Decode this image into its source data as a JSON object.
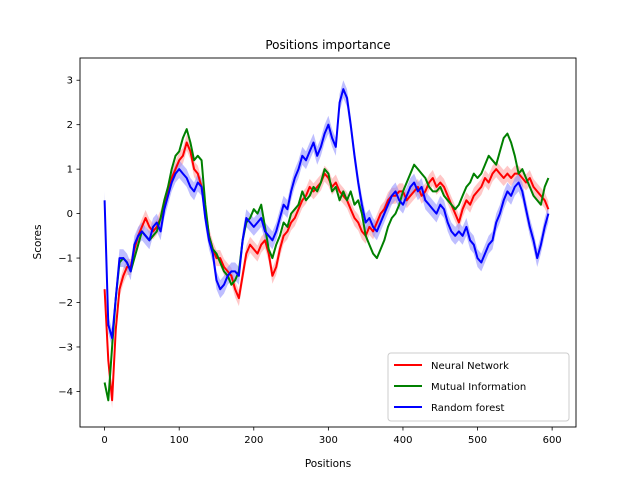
{
  "chart_data": {
    "type": "line",
    "title": "Positions importance",
    "xlabel": "Positions",
    "ylabel": "Scores",
    "xlim": [
      -33,
      632
    ],
    "ylim": [
      -4.8,
      3.5
    ],
    "xticks": [
      0,
      100,
      200,
      300,
      400,
      500,
      600
    ],
    "yticks": [
      -4,
      -3,
      -2,
      -1,
      0,
      1,
      2,
      3
    ],
    "grid": false,
    "legend_position": "lower-right",
    "x": [
      0,
      5,
      10,
      15,
      20,
      25,
      30,
      35,
      40,
      45,
      50,
      55,
      60,
      65,
      70,
      75,
      80,
      85,
      90,
      95,
      100,
      105,
      110,
      115,
      120,
      125,
      130,
      135,
      140,
      145,
      150,
      155,
      160,
      165,
      170,
      175,
      180,
      185,
      190,
      195,
      200,
      205,
      210,
      215,
      220,
      225,
      230,
      235,
      240,
      245,
      250,
      255,
      260,
      265,
      270,
      275,
      280,
      285,
      290,
      295,
      300,
      305,
      310,
      315,
      320,
      325,
      330,
      335,
      340,
      345,
      350,
      355,
      360,
      365,
      370,
      375,
      380,
      385,
      390,
      395,
      400,
      405,
      410,
      415,
      420,
      425,
      430,
      435,
      440,
      445,
      450,
      455,
      460,
      465,
      470,
      475,
      480,
      485,
      490,
      495,
      500,
      505,
      510,
      515,
      520,
      525,
      530,
      535,
      540,
      545,
      550,
      555,
      560,
      565,
      570,
      575,
      580,
      585,
      590,
      595
    ],
    "series": [
      {
        "name": "Neural Network",
        "color": "#ff0000",
        "band_color": "#ff9999",
        "band": 0.18,
        "values": [
          -1.7,
          -3.3,
          -4.2,
          -2.6,
          -1.7,
          -1.4,
          -1.2,
          -1.2,
          -0.8,
          -0.5,
          -0.3,
          -0.1,
          -0.3,
          -0.4,
          -0.3,
          -0.1,
          0.2,
          0.5,
          0.8,
          1.0,
          1.2,
          1.3,
          1.6,
          1.4,
          1.0,
          0.9,
          0.6,
          0.1,
          -0.5,
          -0.8,
          -1.0,
          -1.0,
          -1.2,
          -1.3,
          -1.4,
          -1.7,
          -1.9,
          -1.4,
          -0.9,
          -0.7,
          -0.8,
          -0.9,
          -0.7,
          -0.6,
          -0.9,
          -1.4,
          -1.2,
          -0.8,
          -0.5,
          -0.4,
          -0.2,
          -0.1,
          0.1,
          0.3,
          0.4,
          0.6,
          0.5,
          0.6,
          0.7,
          0.9,
          0.8,
          0.6,
          0.7,
          0.5,
          0.4,
          0.3,
          0.1,
          -0.1,
          -0.2,
          -0.4,
          -0.5,
          -0.3,
          -0.4,
          -0.2,
          0.0,
          0.1,
          0.3,
          0.4,
          0.4,
          0.5,
          0.5,
          0.3,
          0.4,
          0.5,
          0.6,
          0.4,
          0.5,
          0.7,
          0.8,
          0.6,
          0.7,
          0.6,
          0.4,
          0.2,
          0.0,
          -0.2,
          0.1,
          0.3,
          0.2,
          0.4,
          0.5,
          0.6,
          0.8,
          0.7,
          0.9,
          1.0,
          0.9,
          0.8,
          0.9,
          0.8,
          0.9,
          0.9,
          0.8,
          0.7,
          0.8,
          0.6,
          0.5,
          0.4,
          0.3,
          0.1
        ]
      },
      {
        "name": "Mutual Information",
        "color": "#008000",
        "band_color": "#88cc88",
        "band": 0.0,
        "values": [
          -3.8,
          -4.2,
          -3.0,
          -1.9,
          -1.1,
          -1.0,
          -1.1,
          -1.3,
          -1.0,
          -0.7,
          -0.4,
          -0.5,
          -0.6,
          -0.5,
          -0.4,
          -0.1,
          0.3,
          0.6,
          1.0,
          1.3,
          1.4,
          1.7,
          1.9,
          1.6,
          1.2,
          1.3,
          1.2,
          0.2,
          -0.5,
          -0.8,
          -0.9,
          -1.1,
          -1.3,
          -1.4,
          -1.6,
          -1.5,
          -1.3,
          -0.6,
          -0.2,
          -0.1,
          0.1,
          0.0,
          0.2,
          -0.3,
          -0.8,
          -1.0,
          -0.7,
          -0.5,
          -0.2,
          -0.3,
          0.0,
          0.1,
          0.2,
          0.5,
          0.3,
          0.4,
          0.6,
          0.5,
          0.7,
          1.0,
          0.9,
          0.5,
          0.6,
          0.3,
          0.5,
          0.3,
          0.5,
          0.2,
          0.3,
          0.0,
          -0.5,
          -0.7,
          -0.9,
          -1.0,
          -0.8,
          -0.6,
          -0.3,
          -0.1,
          0.0,
          0.2,
          0.5,
          0.7,
          0.9,
          1.1,
          1.0,
          0.9,
          0.8,
          0.6,
          0.5,
          0.5,
          0.6,
          0.4,
          0.3,
          0.2,
          0.1,
          0.2,
          0.4,
          0.6,
          0.7,
          0.9,
          0.8,
          0.9,
          1.1,
          1.3,
          1.2,
          1.1,
          1.4,
          1.7,
          1.8,
          1.6,
          1.3,
          0.9,
          1.0,
          0.8,
          0.6,
          0.4,
          0.3,
          0.2,
          0.6,
          0.8
        ]
      },
      {
        "name": "Random forest",
        "color": "#0000ff",
        "band_color": "#8888ff",
        "band": 0.2,
        "values": [
          0.3,
          -2.5,
          -2.8,
          -1.9,
          -1.0,
          -1.0,
          -1.1,
          -1.3,
          -0.7,
          -0.5,
          -0.4,
          -0.5,
          -0.6,
          -0.3,
          -0.2,
          -0.4,
          0.1,
          0.4,
          0.7,
          0.9,
          1.0,
          0.9,
          0.8,
          0.6,
          0.5,
          0.7,
          0.6,
          -0.1,
          -0.6,
          -0.9,
          -1.5,
          -1.7,
          -1.6,
          -1.4,
          -1.3,
          -1.3,
          -1.4,
          -0.6,
          -0.1,
          -0.2,
          -0.3,
          -0.2,
          -0.1,
          -0.4,
          -0.5,
          -0.6,
          -0.4,
          -0.1,
          0.2,
          0.1,
          0.5,
          0.8,
          1.0,
          1.3,
          1.2,
          1.4,
          1.6,
          1.3,
          1.5,
          1.8,
          2.0,
          1.7,
          1.5,
          2.5,
          2.8,
          2.6,
          2.0,
          1.3,
          0.7,
          0.2,
          -0.2,
          -0.1,
          -0.3,
          -0.4,
          -0.2,
          0.0,
          0.2,
          0.4,
          0.5,
          0.3,
          0.2,
          0.4,
          0.6,
          0.7,
          0.5,
          0.6,
          0.3,
          0.2,
          0.1,
          0.0,
          0.2,
          0.1,
          -0.2,
          -0.4,
          -0.5,
          -0.4,
          -0.5,
          -0.3,
          -0.6,
          -0.7,
          -1.0,
          -1.1,
          -0.9,
          -0.7,
          -0.6,
          -0.2,
          0.0,
          0.3,
          0.5,
          0.4,
          0.6,
          0.7,
          0.5,
          0.1,
          -0.3,
          -0.6,
          -1.0,
          -0.7,
          -0.3,
          0.0
        ]
      }
    ]
  }
}
